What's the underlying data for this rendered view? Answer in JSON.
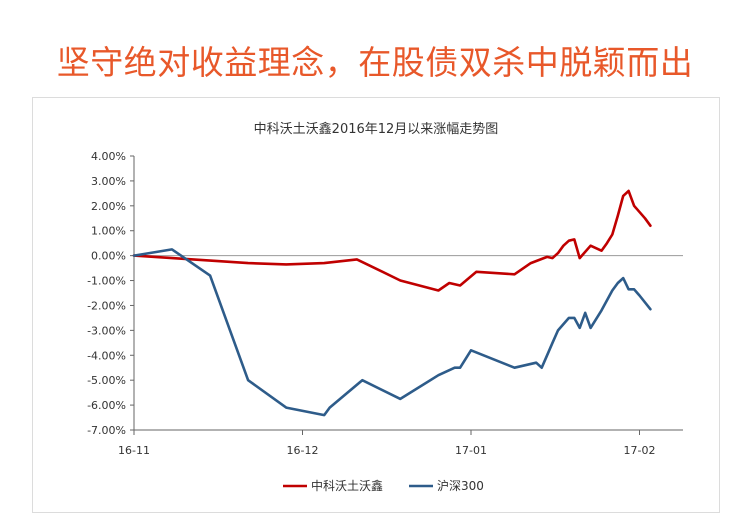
{
  "headline": "坚守绝对收益理念，在股债双杀中脱颖而出",
  "chart_data": {
    "type": "line",
    "title": "中科沃土沃鑫2016年12月以来涨幅走势图",
    "ylim": [
      -7,
      4
    ],
    "yticks": [
      4,
      3,
      2,
      1,
      0,
      -1,
      -2,
      -3,
      -4,
      -5,
      -6,
      -7
    ],
    "ytick_labels": [
      "4.00%",
      "3.00%",
      "2.00%",
      "1.00%",
      "0.00%",
      "-1.00%",
      "-2.00%",
      "-3.00%",
      "-4.00%",
      "-5.00%",
      "-6.00%",
      "-7.00%"
    ],
    "xlim": [
      0,
      101
    ],
    "xticks": [
      0,
      31,
      62,
      93
    ],
    "xtick_labels": [
      "16-11",
      "16-12",
      "17-01",
      "17-02"
    ],
    "legend_position": "bottom",
    "series": [
      {
        "name": "中科沃土沃鑫",
        "color": "#c00000",
        "x": [
          0,
          7,
          14,
          21,
          28,
          35,
          41,
          49,
          56,
          58,
          60,
          63,
          70,
          73,
          76,
          77,
          78,
          79,
          80,
          81,
          82,
          84,
          86,
          87,
          88,
          89,
          90,
          91,
          92,
          94,
          95
        ],
        "y": [
          0.0,
          -0.1,
          -0.2,
          -0.3,
          -0.35,
          -0.3,
          -0.15,
          -1.0,
          -1.4,
          -1.1,
          -1.2,
          -0.65,
          -0.75,
          -0.3,
          -0.05,
          -0.1,
          0.1,
          0.4,
          0.6,
          0.65,
          -0.1,
          0.4,
          0.2,
          0.5,
          0.85,
          1.6,
          2.4,
          2.6,
          2.0,
          1.5,
          1.2
        ]
      },
      {
        "name": "沪深300",
        "color": "#2e5c8a",
        "x": [
          0,
          7,
          14,
          21,
          28,
          35,
          36,
          42,
          49,
          56,
          59,
          60,
          62,
          70,
          74,
          75,
          76,
          77,
          78,
          80,
          81,
          82,
          83,
          84,
          86,
          88,
          89,
          90,
          91,
          92,
          93,
          95
        ],
        "y": [
          0.0,
          0.25,
          -0.8,
          -5.0,
          -6.1,
          -6.4,
          -6.1,
          -5.0,
          -5.75,
          -4.8,
          -4.5,
          -4.5,
          -3.8,
          -4.5,
          -4.3,
          -4.5,
          -4.0,
          -3.5,
          -3.0,
          -2.5,
          -2.5,
          -2.9,
          -2.3,
          -2.9,
          -2.2,
          -1.4,
          -1.1,
          -0.9,
          -1.35,
          -1.35,
          -1.6,
          -2.15
        ]
      }
    ]
  }
}
